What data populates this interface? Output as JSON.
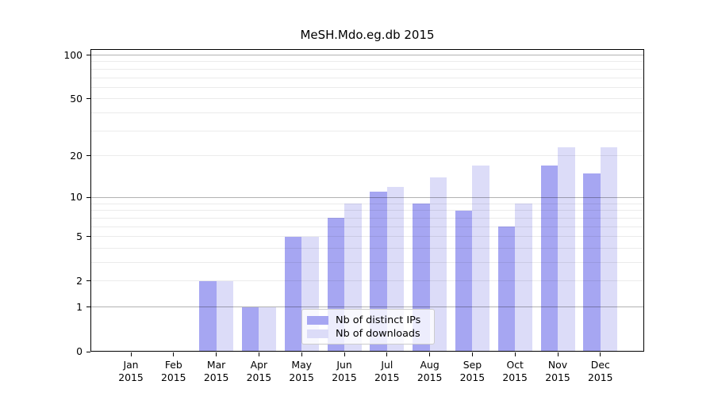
{
  "page": {
    "title": "MeSH.Mdo.eg.db 2015"
  },
  "chart_data": {
    "type": "bar",
    "title": "MeSH.Mdo.eg.db 2015",
    "categories": [
      "Jan",
      "Feb",
      "Mar",
      "Apr",
      "May",
      "Jun",
      "Jul",
      "Aug",
      "Sep",
      "Oct",
      "Nov",
      "Dec"
    ],
    "x_tick_second_line": "2015",
    "series": [
      {
        "name": "Nb of distinct IPs",
        "color": "#a6a6f2",
        "values": [
          0,
          0,
          2,
          1,
          5,
          7,
          11,
          9,
          8,
          6,
          17,
          15
        ]
      },
      {
        "name": "Nb of downloads",
        "color": "#dcdcf8",
        "values": [
          0,
          0,
          2,
          1,
          5,
          9,
          12,
          14,
          17,
          9,
          23,
          23
        ]
      }
    ],
    "y_scale": "log10(1+x)",
    "y_tick_values": [
      0,
      1,
      2,
      5,
      10,
      20,
      50,
      100
    ],
    "y_major_gridlines": [
      1,
      10,
      100
    ],
    "y_minor_gridlines": [
      2,
      3,
      4,
      5,
      6,
      7,
      8,
      9,
      20,
      30,
      40,
      50,
      60,
      70,
      80,
      90
    ],
    "ylim": [
      0,
      110
    ],
    "grid": "on",
    "legend_position": "lower center-left inside plot"
  }
}
